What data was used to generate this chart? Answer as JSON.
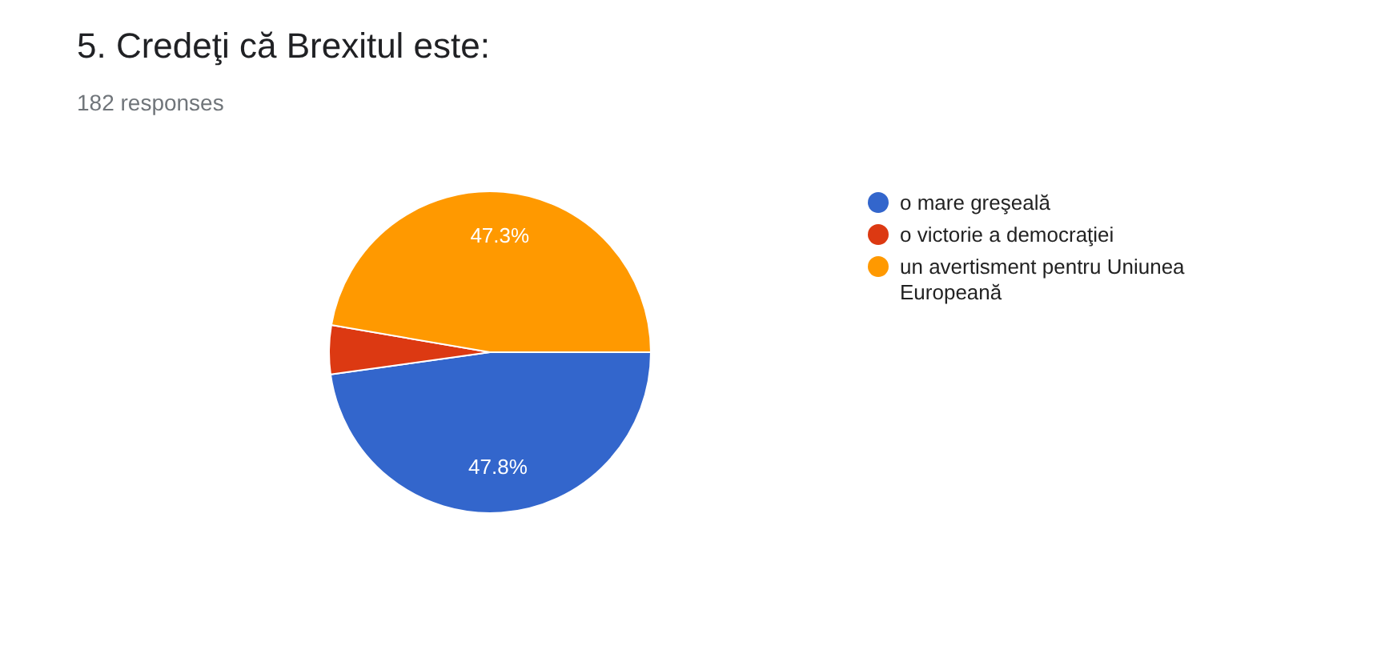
{
  "chart_data": {
    "type": "pie",
    "title": "5. Credeţi că Brexitul este:",
    "subtitle": "182 responses",
    "categories": [
      "o mare greşeală",
      "o victorie a democraţiei",
      "un avertisment pentru Uniunea Europeană"
    ],
    "values": [
      47.8,
      4.9,
      47.3
    ],
    "colors": [
      "#3366cc",
      "#dc3912",
      "#ff9900"
    ],
    "value_labels": [
      "47.8%",
      null,
      "47.3%"
    ],
    "legend": "right"
  }
}
